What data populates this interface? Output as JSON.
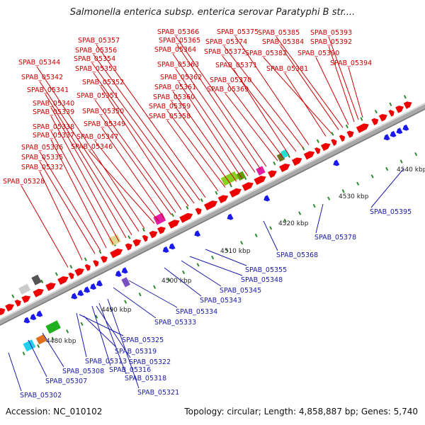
{
  "title": "Salmonella enterica subsp. enterica serovar Paratyphi B str....",
  "footer": {
    "accession": "Accession: NC_010102",
    "summary": "Topology: circular; Length: 4,858,887 bp; Genes: 5,740"
  },
  "colors": {
    "forward_label": "#cc0000",
    "reverse_label": "#1a1aaa",
    "forward_gene": "#ee0000",
    "reverse_gene": "#1a1aee",
    "backbone": "#a8a8a8",
    "tick": "#2e8b2e"
  },
  "kbp_ticks": [
    "4480 kbp",
    "4490 kbp",
    "4500 kbp",
    "4510 kbp",
    "4520 kbp",
    "4530 kbp",
    "4540 kbp"
  ],
  "forward_labels": [
    "SPAB_05328",
    "SPAB_05332",
    "SPAB_05335",
    "SPAB_05336",
    "SPAB_05337",
    "SPAB_05338",
    "SPAB_05339",
    "SPAB_05340",
    "SPAB_05341",
    "SPAB_05342",
    "SPAB_05344",
    "SPAB_05346",
    "SPAB_05347",
    "SPAB_05349",
    "SPAB_05350",
    "SPAB_05351",
    "SPAB_05352",
    "SPAB_05353",
    "SPAB_05354",
    "SPAB_05356",
    "SPAB_05357",
    "SPAB_05358",
    "SPAB_05359",
    "SPAB_05360",
    "SPAB_05361",
    "SPAB_05362",
    "SPAB_05363",
    "SPAB_05364",
    "SPAB_05365",
    "SPAB_05366",
    "SPAB_05369",
    "SPAB_05370",
    "SPAB_05371",
    "SPAB_05372",
    "SPAB_05374",
    "SPAB_05375",
    "SPAB_05381",
    "SPAB_05382",
    "SPAB_05384",
    "SPAB_05385",
    "SPAB_05390",
    "SPAB_05392",
    "SPAB_05393",
    "SPAB_05394"
  ],
  "reverse_labels": [
    "SPAB_05302",
    "SPAB_05307",
    "SPAB_05308",
    "SPAB_05313",
    "SPAB_05316",
    "SPAB_05318",
    "SPAB_05319",
    "SPAB_05321",
    "SPAB_05322",
    "SPAB_05325",
    "SPAB_05333",
    "SPAB_05334",
    "SPAB_05343",
    "SPAB_05345",
    "SPAB_05348",
    "SPAB_05355",
    "SPAB_05368",
    "SPAB_05378",
    "SPAB_05395"
  ]
}
